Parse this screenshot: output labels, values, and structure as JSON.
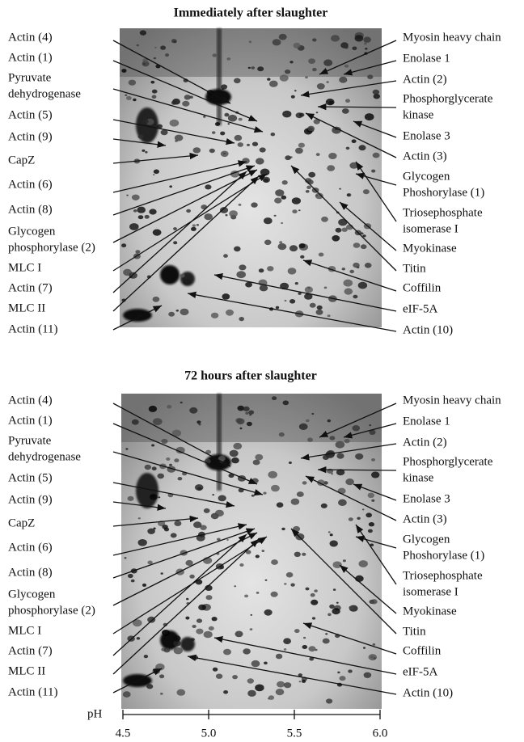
{
  "panels": [
    {
      "title": "Immediately after slaughter",
      "left_labels": [
        [
          "Actin (4)"
        ],
        [
          "Actin (1)"
        ],
        [
          "Pyruvate",
          "dehydrogenase"
        ],
        [
          "Actin (5)"
        ],
        [
          "Actin (9)"
        ],
        [
          "CapZ"
        ],
        [
          "Actin (6)"
        ],
        [
          "Actin (8)"
        ],
        [
          "Glycogen",
          "phosphorylase (2)"
        ],
        [
          "MLC I"
        ],
        [
          "Actin (7)"
        ],
        [
          "MLC II"
        ],
        [
          "Actin (11)"
        ]
      ],
      "right_labels": [
        [
          "Myosin heavy chain"
        ],
        [
          "Enolase 1"
        ],
        [
          "Actin (2)"
        ],
        [
          "Phosphorglycerate",
          "kinase"
        ],
        [
          "Enolase 3"
        ],
        [
          "Actin (3)"
        ],
        [
          "Glycogen",
          "Phoshorylase (1)"
        ],
        [
          "Triosephosphate",
          "isomerase I"
        ],
        [
          "Myokinase"
        ],
        [
          "Titin"
        ],
        [
          "Coffilin"
        ],
        [
          "eIF-5A"
        ],
        [
          "Actin (10)"
        ]
      ]
    },
    {
      "title": "72 hours after slaughter",
      "left_labels": [
        [
          "Actin (4)"
        ],
        [
          "Actin (1)"
        ],
        [
          "Pyruvate",
          "dehydrogenase"
        ],
        [
          "Actin (5)"
        ],
        [
          "Actin (9)"
        ],
        [
          "CapZ"
        ],
        [
          "Actin (6)"
        ],
        [
          "Actin (8)"
        ],
        [
          "Glycogen",
          "phosphorylase (2)"
        ],
        [
          "MLC I"
        ],
        [
          "Actin (7)"
        ],
        [
          "MLC II"
        ],
        [
          "Actin (11)"
        ]
      ],
      "right_labels": [
        [
          "Myosin heavy chain"
        ],
        [
          "Enolase 1"
        ],
        [
          "Actin (2)"
        ],
        [
          "Phosphorglycerate",
          "kinase"
        ],
        [
          "Enolase 3"
        ],
        [
          "Actin (3)"
        ],
        [
          "Glycogen",
          "Phoshorylase (1)"
        ],
        [
          "Triosephosphate",
          "isomerase I"
        ],
        [
          "Myokinase"
        ],
        [
          "Titin"
        ],
        [
          "Coffilin"
        ],
        [
          "eIF-5A"
        ],
        [
          "Actin (10)"
        ]
      ]
    }
  ],
  "axis": {
    "label": "pH",
    "xlim": [
      4.5,
      6.0
    ],
    "ticks": [
      4.5,
      {
        "value": 5,
        "label": "5.0"
      },
      5.5,
      {
        "value": 6,
        "label": "6.0"
      }
    ]
  }
}
